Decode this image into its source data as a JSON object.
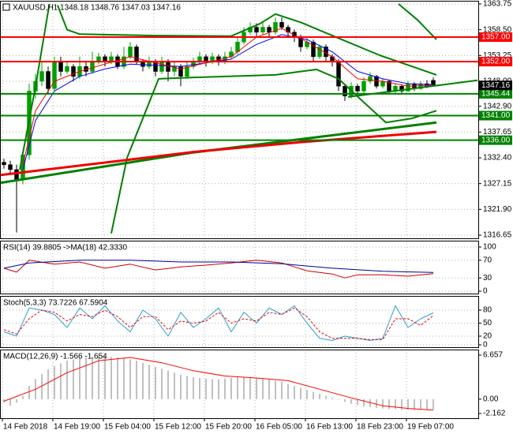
{
  "chart_data": [
    {
      "type": "candlestick",
      "title": "XAUUSD,H1 1348.18 1348.76 1347.03 1347.16",
      "categories": [
        "14 Feb 2018",
        null,
        null,
        null,
        null,
        null,
        null,
        null,
        "14 Feb 19:00",
        null,
        null,
        null,
        null,
        null,
        null,
        null,
        "15 Feb 04:00",
        null,
        null,
        null,
        null,
        null,
        null,
        null,
        "15 Feb 12:00",
        null,
        null,
        null,
        null,
        null,
        null,
        null,
        "15 Feb 20:00",
        null,
        null,
        null,
        null,
        null,
        null,
        null,
        "16 Feb 05:00",
        null,
        null,
        null,
        null,
        null,
        null,
        null,
        "16 Feb 13:00",
        null,
        null,
        null,
        null,
        null,
        null,
        null,
        "18 Feb 23:00",
        null,
        null,
        null,
        null,
        null,
        null,
        null,
        "19 Feb 07:00",
        null,
        null,
        null,
        null
      ],
      "open": [
        1331.5,
        1331,
        1330,
        1328,
        1333,
        1346,
        1348,
        1350,
        1346.5,
        1352,
        1350,
        1351,
        1349,
        1351,
        1350,
        1352,
        1353,
        1352,
        1353,
        1351,
        1353,
        1355,
        1352,
        1351,
        1352,
        1350,
        1352,
        1350,
        1351,
        1349,
        1351,
        1352,
        1353,
        1352,
        1353,
        1352,
        1353,
        1354,
        1356,
        1358,
        1359,
        1358,
        1359,
        1358,
        1360,
        1359,
        1358,
        1357,
        1355,
        1356,
        1353,
        1355,
        1353,
        1352,
        1347,
        1345,
        1347,
        1346,
        1348,
        1349,
        1347,
        1348,
        1346,
        1347,
        1346,
        1347.5,
        1346.5,
        1347.5,
        1348.18
      ],
      "high": [
        1332.2,
        1331.8,
        1331,
        1334,
        1347.5,
        1349.5,
        1352,
        1351,
        1353,
        1353,
        1352,
        1351.5,
        1353,
        1352,
        1354,
        1353.8,
        1353.5,
        1354,
        1353.5,
        1355,
        1356,
        1355.5,
        1352.5,
        1353,
        1352.5,
        1353,
        1352.5,
        1352,
        1351.5,
        1352,
        1352.8,
        1354,
        1353.5,
        1353.8,
        1353.5,
        1354,
        1355,
        1357,
        1359,
        1360,
        1359.8,
        1360,
        1359.5,
        1361,
        1361,
        1359.5,
        1358.5,
        1357.5,
        1356.8,
        1356.5,
        1355.5,
        1355.5,
        1353.5,
        1352.5,
        1347.5,
        1347.8,
        1347.5,
        1348.8,
        1349.8,
        1349.3,
        1348.6,
        1348.3,
        1347.6,
        1347.4,
        1348,
        1347.8,
        1348,
        1348.2,
        1348.76
      ],
      "low": [
        1330.2,
        1329,
        1317.2,
        1327,
        1332,
        1344.5,
        1347,
        1345.5,
        1346,
        1349,
        1349.5,
        1348,
        1348.5,
        1349,
        1349.5,
        1351.5,
        1351,
        1351.5,
        1350.5,
        1350.5,
        1352.5,
        1351.5,
        1350,
        1350.5,
        1349,
        1349.5,
        1348,
        1349,
        1347,
        1348.5,
        1350.5,
        1351.5,
        1351,
        1351.5,
        1351.2,
        1351.5,
        1352.5,
        1353.5,
        1355.5,
        1357.5,
        1357,
        1357.5,
        1357,
        1357.5,
        1358.5,
        1357,
        1356,
        1354,
        1354.5,
        1352,
        1352.5,
        1352,
        1351,
        1346,
        1344,
        1344.5,
        1345.2,
        1345.5,
        1347.5,
        1346.5,
        1346.5,
        1345.5,
        1345.5,
        1345.5,
        1345.8,
        1346,
        1346.2,
        1346.6,
        1347.03
      ],
      "close": [
        1331,
        1330,
        1328,
        1333,
        1346,
        1348,
        1350,
        1346.5,
        1352,
        1350,
        1351,
        1349,
        1351,
        1350,
        1352,
        1353,
        1352,
        1353,
        1351,
        1353,
        1355,
        1352,
        1351,
        1352,
        1350,
        1352,
        1350,
        1351,
        1349,
        1351,
        1352,
        1353,
        1352,
        1353,
        1352,
        1353,
        1354,
        1356,
        1358,
        1359,
        1358,
        1359,
        1358,
        1360,
        1359,
        1358,
        1357,
        1355,
        1356,
        1353,
        1355,
        1353,
        1352,
        1347,
        1345,
        1347,
        1346,
        1348,
        1349,
        1347,
        1348,
        1346,
        1347,
        1346,
        1347.5,
        1346.5,
        1347.5,
        1347,
        1347.16
      ],
      "up_color": "#00a000",
      "down_color": "#000000",
      "ylim": [
        1316.65,
        1363.75
      ],
      "yticks": [
        1363.75,
        {
          "value": 1358.5,
          "label": "1358.50"
        },
        1353.25,
        {
          "value": 1348,
          "label": "1348.00"
        },
        {
          "value": 1342.9,
          "label": "1342.90"
        },
        1337.65,
        {
          "value": 1332.4,
          "label": "1332.40"
        },
        1327.15,
        {
          "value": 1321.9,
          "label": "1321.90"
        },
        1316.65
      ],
      "grid": true,
      "series": [
        {
          "color": "#008000",
          "width": 2,
          "x": [
            2.5,
            5,
            7.2
          ],
          "values": [
            1330,
            1346.9,
            1363.75
          ]
        },
        {
          "color": "#008000",
          "width": 2,
          "x": [
            8.5,
            10,
            12,
            24,
            36,
            40.5,
            43,
            47,
            52,
            59.5,
            68.5
          ],
          "values": [
            1363.5,
            1358.5,
            1357.6,
            1357.3,
            1357.2,
            1359.7,
            1361.7,
            1360,
            1357.3,
            1353.3,
            1349.3
          ]
        },
        {
          "color": "#008000",
          "width": 2,
          "x": [
            17,
            19.5,
            24.5,
            30.5,
            43,
            49.5,
            53,
            57,
            60.5,
            64.5,
            68.5
          ],
          "values": [
            1317,
            1332.4,
            1348.5,
            1348.8,
            1349.3,
            1350.4,
            1348.5,
            1343.7,
            1339.6,
            1340.4,
            1342
          ]
        },
        {
          "color": "#008000",
          "width": 2,
          "x": [
            62.5,
            65.5,
            68.5
          ],
          "values": [
            1363.75,
            1360.5,
            1356.5
          ]
        },
        {
          "color": "#0000ff",
          "width": 1,
          "x": [
            3,
            5,
            8,
            12,
            16,
            20,
            28,
            36,
            40,
            44,
            48,
            52,
            56,
            60,
            64,
            68
          ],
          "values": [
            1330,
            1340,
            1346,
            1349,
            1350.5,
            1351.5,
            1351,
            1352.5,
            1355.5,
            1357.5,
            1356.5,
            1354,
            1350,
            1348.5,
            1347.5,
            1347.3
          ]
        },
        {
          "color": "#ff0000",
          "width": 1,
          "x": [
            3,
            5,
            8,
            12,
            16,
            20,
            28,
            36,
            40,
            44,
            48,
            52,
            56,
            60,
            64,
            68
          ],
          "values": [
            1331,
            1342,
            1348,
            1350,
            1351.5,
            1353,
            1350.5,
            1353,
            1357,
            1358.8,
            1356,
            1353,
            1348.5,
            1348,
            1347,
            1347.2
          ]
        },
        {
          "color": "#008000",
          "width": 3,
          "x": [
            -0.5,
            30,
            68.5
          ],
          "values": [
            1327.3,
            1333.5,
            1339.6
          ]
        },
        {
          "color": "#ee0000",
          "width": 3,
          "x": [
            -0.5,
            30,
            47,
            68.5
          ],
          "values": [
            1328.9,
            1333.6,
            1335.6,
            1337.7
          ]
        },
        {
          "color": "#008000",
          "width": 2,
          "x": [
            54.5,
            75
          ],
          "values": [
            1344.8,
            1348.2
          ]
        }
      ],
      "levels": [
        {
          "value": 1357,
          "label": "1357.00",
          "color": "#ff0000"
        },
        {
          "value": 1352,
          "label": "1352.00",
          "color": "#ff0000"
        },
        {
          "value": 1345.44,
          "label": "1345.44",
          "color": "#008000"
        },
        {
          "value": 1341,
          "label": "1341.00",
          "color": "#008000"
        },
        {
          "value": 1336,
          "label": "1336.00",
          "color": "#008000"
        }
      ],
      "last_price": 1347.16
    },
    {
      "type": "line",
      "title": "RSI(14) 39.8805  ->MA(18) 42.3330",
      "ylim": [
        0,
        100
      ],
      "yticks": [
        100,
        70,
        30,
        0
      ],
      "grid": true,
      "series": [
        {
          "color": "#cc0000",
          "width": 1,
          "x": [
            0,
            2,
            4,
            8,
            12,
            16,
            20,
            24,
            28,
            32,
            36,
            40,
            44,
            48,
            52,
            54,
            56,
            60,
            64,
            68
          ],
          "values": [
            52,
            43,
            70,
            61,
            66,
            52,
            61,
            48,
            55,
            59,
            64,
            70,
            64,
            46,
            39,
            30,
            37,
            37,
            34,
            39.8805
          ]
        },
        {
          "color": "#000099",
          "width": 1,
          "x": [
            0,
            4,
            12,
            20,
            28,
            36,
            44,
            52,
            60,
            68
          ],
          "values": [
            52,
            64,
            70,
            70,
            66,
            66,
            62,
            52,
            45,
            42.333
          ]
        }
      ]
    },
    {
      "type": "line",
      "title": "Stoch(5,3,3) 73.7226 67.5904",
      "ylim": [
        0,
        100
      ],
      "yticks": [
        80,
        50,
        20,
        0
      ],
      "grid": true,
      "series": [
        {
          "color": "#2a9fd6",
          "width": 1,
          "x": [
            0,
            2,
            4,
            6,
            8,
            10,
            12,
            14,
            16,
            18,
            20,
            22,
            24,
            26,
            28,
            30,
            32,
            34,
            36,
            38,
            40,
            42,
            44,
            46,
            48,
            50,
            52,
            54,
            56,
            58,
            60,
            62,
            64,
            66,
            68
          ],
          "values": [
            30,
            20,
            85,
            80,
            70,
            40,
            85,
            60,
            90,
            55,
            30,
            80,
            60,
            20,
            75,
            40,
            60,
            85,
            30,
            75,
            50,
            85,
            70,
            90,
            50,
            15,
            10,
            20,
            15,
            10,
            15,
            90,
            40,
            60,
            73.7226
          ]
        },
        {
          "color": "#ff0000",
          "width": 1,
          "dash": true,
          "x": [
            0,
            2,
            4,
            6,
            8,
            10,
            12,
            14,
            16,
            18,
            20,
            22,
            24,
            26,
            28,
            30,
            32,
            34,
            36,
            38,
            40,
            42,
            44,
            46,
            48,
            50,
            52,
            54,
            56,
            58,
            60,
            62,
            64,
            66,
            68
          ],
          "values": [
            35,
            25,
            60,
            80,
            75,
            55,
            70,
            65,
            80,
            65,
            40,
            65,
            65,
            35,
            55,
            50,
            55,
            75,
            50,
            60,
            55,
            75,
            70,
            85,
            65,
            30,
            15,
            15,
            15,
            12,
            12,
            60,
            60,
            45,
            67.5904
          ]
        }
      ]
    },
    {
      "type": "bar",
      "title": "MACD(12,26,9) -1.566 -1.654",
      "ylim": [
        -2.162,
        6.657
      ],
      "yticks": [
        6.657,
        {
          "value": 0,
          "label": "0.00"
        },
        -2.162
      ],
      "grid": false,
      "color": "#c0c0c0",
      "values": [
        -0.5,
        -1,
        -0.5,
        0.5,
        2,
        3,
        3.8,
        4.5,
        5,
        5.4,
        5.8,
        6,
        6.2,
        6.3,
        6.4,
        6.5,
        6.5,
        6.4,
        6.3,
        6.2,
        6,
        5.8,
        5.5,
        5.2,
        4.9,
        4.6,
        4.3,
        4.0,
        3.7,
        3.5,
        3.3,
        3.2,
        3.1,
        3.0,
        3.0,
        3.1,
        3.2,
        3.3,
        3.3,
        3.3,
        3.2,
        3.1,
        3.0,
        2.8,
        2.6,
        2.3,
        2.0,
        1.7,
        1.4,
        1.1,
        0.8,
        0.5,
        0.2,
        -0.1,
        -0.4,
        -0.7,
        -0.9,
        -1.1,
        -1.2,
        -1.3,
        -1.4,
        -1.5,
        -1.5,
        -1.6,
        -1.6,
        -1.6,
        -1.6,
        -1.6,
        -1.566
      ],
      "series": [
        {
          "color": "#ff0000",
          "width": 1,
          "x": [
            0,
            5,
            10,
            15,
            20,
            25,
            30,
            35,
            40,
            45,
            50,
            55,
            60,
            64,
            68
          ],
          "values": [
            -0.3,
            1.5,
            4,
            5.8,
            6.3,
            5.5,
            4.3,
            3.5,
            3.2,
            2.8,
            1.5,
            0.2,
            -1,
            -1.4,
            -1.654
          ]
        }
      ]
    }
  ]
}
